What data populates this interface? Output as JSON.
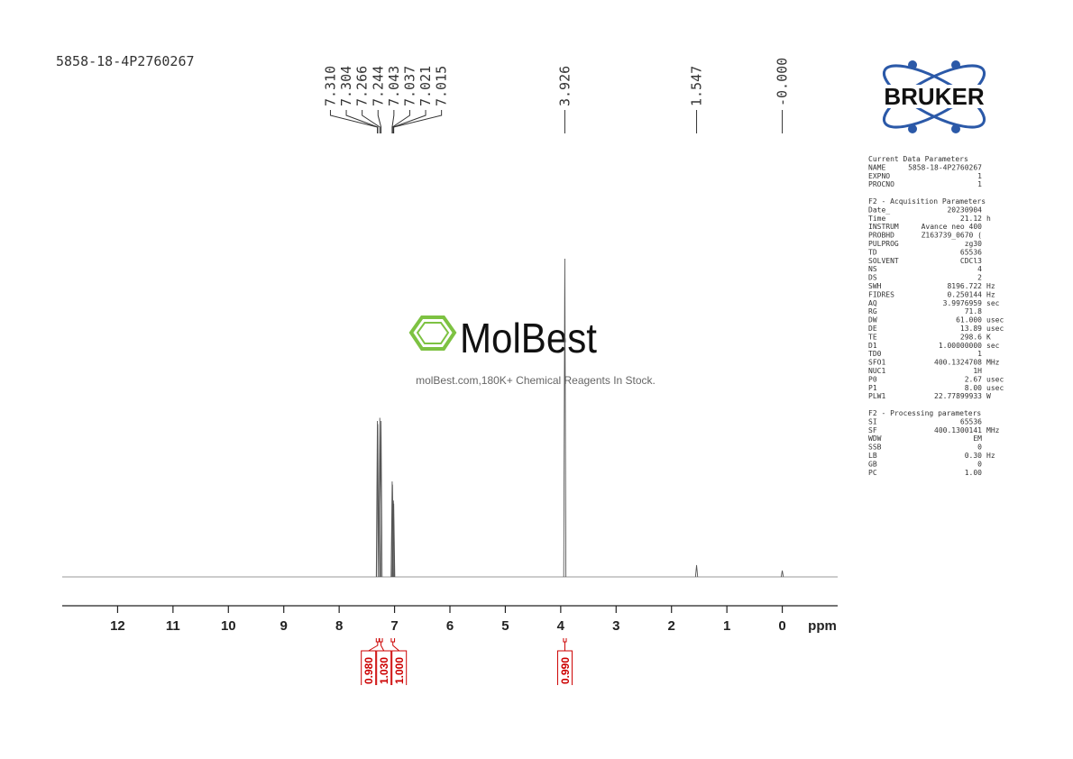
{
  "chart_data": {
    "type": "nmr",
    "title": "5858-18-4P2760267",
    "xlabel": "ppm",
    "xlim": [
      13,
      -1
    ],
    "xticks": [
      12,
      11,
      10,
      9,
      8,
      7,
      6,
      5,
      4,
      3,
      2,
      1,
      0
    ],
    "ylim": [
      0,
      100
    ],
    "color": "#555555",
    "peaks": {
      "x": [
        7.31,
        7.304,
        7.266,
        7.244,
        7.043,
        7.037,
        7.021,
        7.015,
        3.926,
        1.547,
        0
      ],
      "labels": [
        "7.310",
        "7.304",
        "7.266",
        "7.244",
        "7.043",
        "7.037",
        "7.021",
        "7.015",
        "3.926",
        "1.547",
        "-0.000"
      ],
      "values": [
        49,
        48,
        50,
        49,
        30,
        29,
        24,
        23,
        100,
        3.7,
        2
      ]
    },
    "integrals": {
      "color": "#cc0000",
      "ranges": [
        [
          7.33,
          7.28
        ],
        [
          7.27,
          7.22
        ],
        [
          7.06,
          7.0
        ],
        [
          3.95,
          3.9
        ]
      ],
      "values": [
        0.98,
        1.03,
        1.0,
        0.99
      ],
      "value_labels": [
        "0.980",
        "1.030",
        "1.000",
        "0.990"
      ]
    }
  },
  "watermark": {
    "brand": "MolBest",
    "tagline": "molBest.com,180K+ Chemical Reagents In Stock."
  },
  "logo": "BRUKER",
  "parameters": [
    {
      "title": "Current Data Parameters",
      "rows": [
        [
          "NAME",
          "5858-18-4P2760267"
        ],
        [
          "EXPNO",
          "1"
        ],
        [
          "PROCNO",
          "1"
        ]
      ]
    },
    {
      "title": "F2 - Acquisition Parameters",
      "rows": [
        [
          "Date_",
          "20230904"
        ],
        [
          "Time",
          "21.12",
          "h"
        ],
        [
          "INSTRUM",
          "Avance neo 400"
        ],
        [
          "PROBHD",
          "Z163739_0670 ("
        ],
        [
          "PULPROG",
          "zg30"
        ],
        [
          "TD",
          "65536"
        ],
        [
          "SOLVENT",
          "CDCl3"
        ],
        [
          "NS",
          "4"
        ],
        [
          "DS",
          "2"
        ],
        [
          "SWH",
          "8196.722",
          "Hz"
        ],
        [
          "FIDRES",
          "0.250144",
          "Hz"
        ],
        [
          "AQ",
          "3.9976959",
          "sec"
        ],
        [
          "RG",
          "71.8"
        ],
        [
          "DW",
          "61.000",
          "usec"
        ],
        [
          "DE",
          "13.89",
          "usec"
        ],
        [
          "TE",
          "298.6",
          "K"
        ],
        [
          "D1",
          "1.00000000",
          "sec"
        ],
        [
          "TD0",
          "1"
        ],
        [
          "SFO1",
          "400.1324708",
          "MHz"
        ],
        [
          "NUC1",
          "1H"
        ],
        [
          "P0",
          "2.67",
          "usec"
        ],
        [
          "P1",
          "8.00",
          "usec"
        ],
        [
          "PLW1",
          "22.77899933",
          "W"
        ]
      ]
    },
    {
      "title": "F2 - Processing parameters",
      "rows": [
        [
          "SI",
          "65536"
        ],
        [
          "SF",
          "400.1300141",
          "MHz"
        ],
        [
          "WDW",
          "EM"
        ],
        [
          "SSB",
          "0"
        ],
        [
          "LB",
          "0.30",
          "Hz"
        ],
        [
          "GB",
          "0"
        ],
        [
          "PC",
          "1.00"
        ]
      ]
    }
  ]
}
